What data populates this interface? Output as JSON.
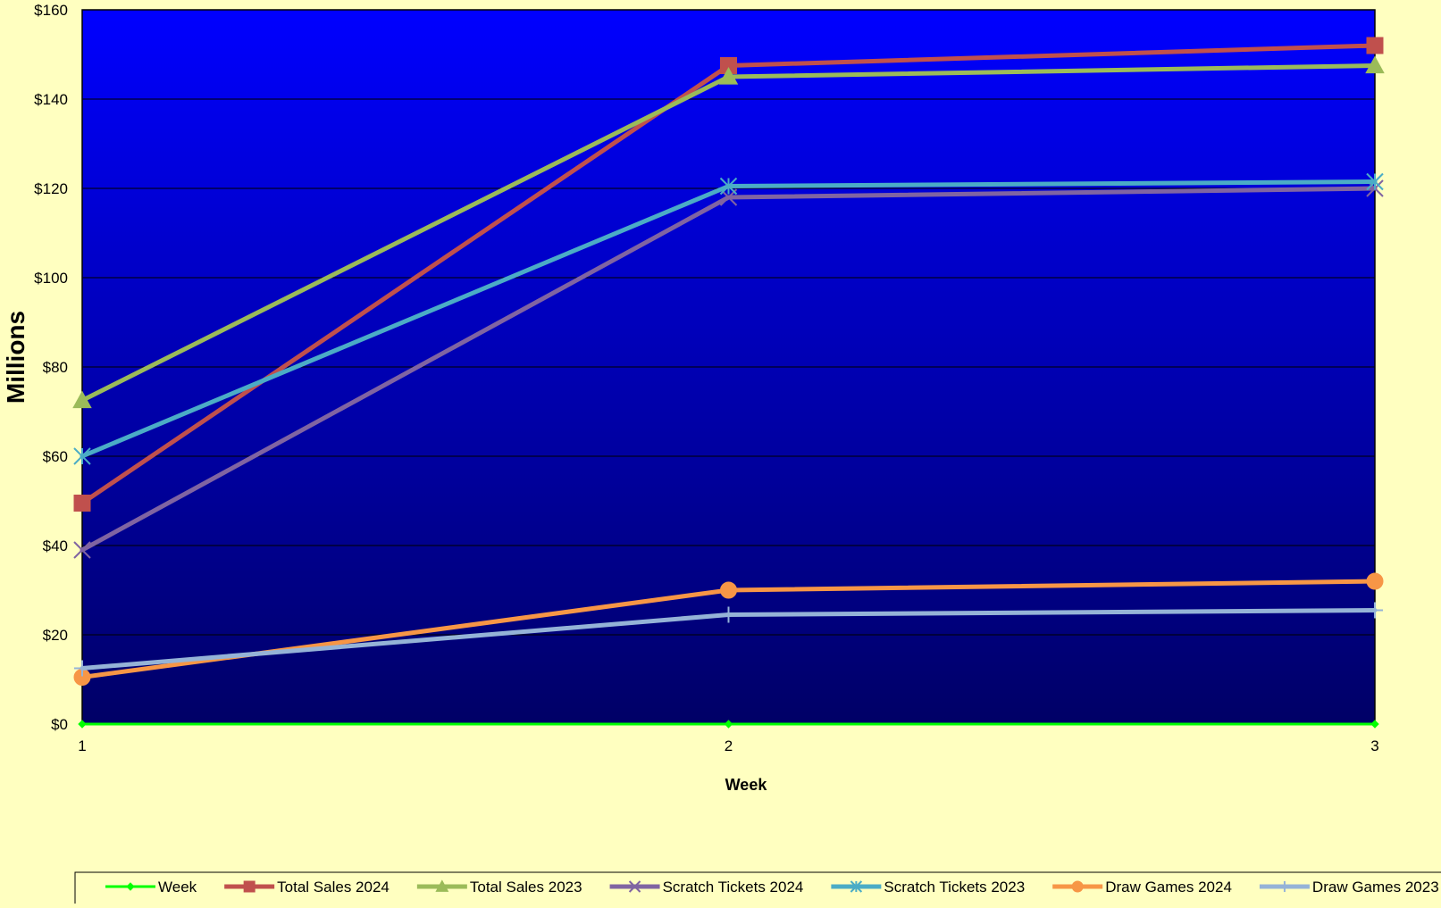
{
  "chart_data": {
    "type": "line",
    "title": "",
    "xlabel": "Week",
    "ylabel": "Millions",
    "x": [
      1,
      2,
      3
    ],
    "x_tick_labels": [
      "1",
      "2",
      "3"
    ],
    "y_tick_labels": [
      "$0",
      "$20",
      "$40",
      "$60",
      "$80",
      "$100",
      "$120",
      "$140",
      "$160"
    ],
    "ylim": [
      0,
      160
    ],
    "grid": true,
    "legend_position": "bottom",
    "plot_background": {
      "top": "#0000ff",
      "bottom": "#000066"
    },
    "page_background": "#ffffc0",
    "series": [
      {
        "name": "Week",
        "values": [
          0,
          0,
          0
        ],
        "color": "#00ff00",
        "marker": "diamond"
      },
      {
        "name": "Total Sales 2024",
        "values": [
          49.5,
          147.5,
          152
        ],
        "color": "#c0504d",
        "marker": "square"
      },
      {
        "name": "Total Sales 2023",
        "values": [
          72.5,
          145,
          147.5
        ],
        "color": "#9bbb59",
        "marker": "triangle"
      },
      {
        "name": "Scratch Tickets 2024",
        "values": [
          39,
          118,
          120
        ],
        "color": "#8064a2",
        "marker": "x"
      },
      {
        "name": "Scratch Tickets 2023",
        "values": [
          60,
          120.5,
          121.5
        ],
        "color": "#4bacc6",
        "marker": "star"
      },
      {
        "name": "Draw Games 2024",
        "values": [
          10.5,
          30,
          32
        ],
        "color": "#f79646",
        "marker": "circle"
      },
      {
        "name": "Draw Games  2023",
        "values": [
          12.5,
          24.5,
          25.5
        ],
        "color": "#95b3d7",
        "marker": "plus"
      }
    ]
  }
}
